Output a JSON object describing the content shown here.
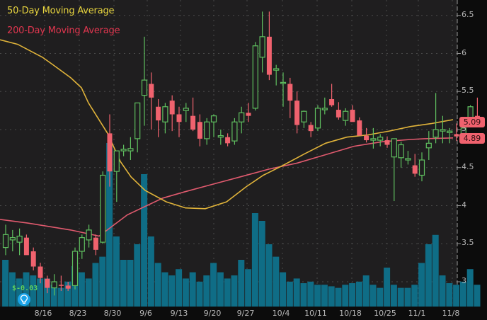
{
  "chart_data": {
    "type": "candlestick",
    "title": "",
    "legend": [
      {
        "label": "50-Day Moving Average",
        "color": "#e9d63f"
      },
      {
        "label": "200-Day Moving Average",
        "color": "#e0364f"
      }
    ],
    "y_axis": {
      "ticks": [
        "6.5",
        "6",
        "5.5",
        "5",
        "4.5",
        "4",
        "3.5",
        "3"
      ],
      "tick_values": [
        6.5,
        6,
        5.5,
        5,
        4.5,
        4,
        3.5,
        3
      ],
      "ylim": [
        2.7,
        6.65
      ],
      "position": "right"
    },
    "x_axis": {
      "ticks": [
        "8/16",
        "8/23",
        "8/30",
        "9/6",
        "9/13",
        "9/20",
        "9/27",
        "10/4",
        "10/11",
        "10/18",
        "10/25",
        "11/1",
        "11/8"
      ],
      "tick_x": [
        61,
        110,
        159,
        206,
        253,
        300,
        347,
        397,
        446,
        495,
        544,
        589,
        637
      ]
    },
    "price_tags": [
      {
        "label": "5.09",
        "value": 5.09,
        "series": "last price"
      },
      {
        "label": "4.89",
        "value": 4.89,
        "series": "200-Day Moving Average"
      }
    ],
    "candles_x_start": 8,
    "candles_x_step": 9.8,
    "candles": [
      {
        "o": 3.45,
        "h": 3.75,
        "l": 3.35,
        "c": 3.62,
        "v": 0.3
      },
      {
        "o": 3.55,
        "h": 3.68,
        "l": 3.4,
        "c": 3.58,
        "v": 0.22
      },
      {
        "o": 3.52,
        "h": 3.7,
        "l": 3.35,
        "c": 3.6,
        "v": 0.18
      },
      {
        "o": 3.58,
        "h": 3.62,
        "l": 3.4,
        "c": 3.35,
        "v": 0.22
      },
      {
        "o": 3.4,
        "h": 3.45,
        "l": 3.15,
        "c": 3.2,
        "v": 0.2
      },
      {
        "o": 3.2,
        "h": 3.25,
        "l": 2.98,
        "c": 3.05,
        "v": 0.18
      },
      {
        "o": 3.04,
        "h": 3.08,
        "l": 2.85,
        "c": 2.92,
        "v": 0.18
      },
      {
        "o": 2.92,
        "h": 3.1,
        "l": 2.82,
        "c": 3.0,
        "v": 0.14
      },
      {
        "o": 2.96,
        "h": 3.08,
        "l": 2.88,
        "c": 2.95,
        "v": 0.12
      },
      {
        "o": 2.95,
        "h": 3.0,
        "l": 2.88,
        "c": 2.91,
        "v": 0.16
      },
      {
        "o": 2.95,
        "h": 3.45,
        "l": 2.9,
        "c": 3.4,
        "v": 0.26
      },
      {
        "o": 3.4,
        "h": 3.62,
        "l": 3.3,
        "c": 3.58,
        "v": 0.22
      },
      {
        "o": 3.55,
        "h": 3.75,
        "l": 3.45,
        "c": 3.68,
        "v": 0.18
      },
      {
        "o": 3.58,
        "h": 3.62,
        "l": 3.35,
        "c": 3.42,
        "v": 0.28
      },
      {
        "o": 3.52,
        "h": 4.45,
        "l": 3.5,
        "c": 4.4,
        "v": 0.32
      },
      {
        "o": 4.95,
        "h": 5.2,
        "l": 4.25,
        "c": 4.45,
        "v": 1.05
      },
      {
        "o": 4.45,
        "h": 4.7,
        "l": 4.05,
        "c": 4.72,
        "v": 0.45
      },
      {
        "o": 4.72,
        "h": 4.8,
        "l": 4.65,
        "c": 4.74,
        "v": 0.3
      },
      {
        "o": 4.72,
        "h": 4.9,
        "l": 4.6,
        "c": 4.75,
        "v": 0.3
      },
      {
        "o": 4.88,
        "h": 5.3,
        "l": 4.7,
        "c": 5.35,
        "v": 0.4
      },
      {
        "o": 5.45,
        "h": 6.22,
        "l": 5.05,
        "c": 5.65,
        "v": 0.85
      },
      {
        "o": 5.6,
        "h": 5.75,
        "l": 5.0,
        "c": 5.42,
        "v": 0.45
      },
      {
        "o": 5.3,
        "h": 5.4,
        "l": 4.9,
        "c": 5.12,
        "v": 0.28
      },
      {
        "o": 5.1,
        "h": 5.35,
        "l": 4.95,
        "c": 5.3,
        "v": 0.22
      },
      {
        "o": 5.38,
        "h": 5.45,
        "l": 4.98,
        "c": 5.2,
        "v": 0.2
      },
      {
        "o": 5.2,
        "h": 5.3,
        "l": 4.9,
        "c": 5.1,
        "v": 0.24
      },
      {
        "o": 5.25,
        "h": 5.35,
        "l": 5.1,
        "c": 5.28,
        "v": 0.18
      },
      {
        "o": 5.18,
        "h": 5.42,
        "l": 4.98,
        "c": 5.0,
        "v": 0.22
      },
      {
        "o": 5.1,
        "h": 5.2,
        "l": 4.78,
        "c": 4.88,
        "v": 0.16
      },
      {
        "o": 4.88,
        "h": 5.15,
        "l": 4.8,
        "c": 5.1,
        "v": 0.2
      },
      {
        "o": 5.1,
        "h": 5.2,
        "l": 4.9,
        "c": 5.18,
        "v": 0.28
      },
      {
        "o": 4.9,
        "h": 5.0,
        "l": 4.8,
        "c": 4.92,
        "v": 0.22
      },
      {
        "o": 4.9,
        "h": 4.95,
        "l": 4.78,
        "c": 4.82,
        "v": 0.18
      },
      {
        "o": 4.85,
        "h": 5.15,
        "l": 4.8,
        "c": 5.1,
        "v": 0.2
      },
      {
        "o": 5.1,
        "h": 5.3,
        "l": 4.95,
        "c": 5.22,
        "v": 0.3
      },
      {
        "o": 5.22,
        "h": 5.35,
        "l": 5.1,
        "c": 5.18,
        "v": 0.24
      },
      {
        "o": 5.28,
        "h": 6.15,
        "l": 5.25,
        "c": 6.1,
        "v": 0.6
      },
      {
        "o": 5.95,
        "h": 6.55,
        "l": 5.75,
        "c": 6.22,
        "v": 0.55
      },
      {
        "o": 6.22,
        "h": 6.55,
        "l": 5.65,
        "c": 5.72,
        "v": 0.4
      },
      {
        "o": 5.78,
        "h": 5.85,
        "l": 5.58,
        "c": 5.8,
        "v": 0.32
      },
      {
        "o": 5.62,
        "h": 5.75,
        "l": 5.3,
        "c": 5.62,
        "v": 0.22
      },
      {
        "o": 5.6,
        "h": 5.68,
        "l": 5.15,
        "c": 5.38,
        "v": 0.16
      },
      {
        "o": 5.38,
        "h": 5.5,
        "l": 4.95,
        "c": 5.06,
        "v": 0.18
      },
      {
        "o": 5.1,
        "h": 5.25,
        "l": 5.02,
        "c": 5.24,
        "v": 0.15
      },
      {
        "o": 5.06,
        "h": 5.1,
        "l": 4.9,
        "c": 4.98,
        "v": 0.16
      },
      {
        "o": 5.02,
        "h": 5.32,
        "l": 4.98,
        "c": 5.28,
        "v": 0.14
      },
      {
        "o": 5.26,
        "h": 5.42,
        "l": 5.2,
        "c": 5.28,
        "v": 0.14
      },
      {
        "o": 5.4,
        "h": 5.6,
        "l": 5.3,
        "c": 5.32,
        "v": 0.13
      },
      {
        "o": 5.26,
        "h": 5.36,
        "l": 5.13,
        "c": 5.16,
        "v": 0.12
      },
      {
        "o": 5.12,
        "h": 5.28,
        "l": 5.05,
        "c": 5.24,
        "v": 0.14
      },
      {
        "o": 5.26,
        "h": 5.32,
        "l": 5.12,
        "c": 5.1,
        "v": 0.15
      },
      {
        "o": 5.12,
        "h": 5.16,
        "l": 4.95,
        "c": 4.92,
        "v": 0.16
      },
      {
        "o": 4.92,
        "h": 5.02,
        "l": 4.83,
        "c": 4.86,
        "v": 0.2
      },
      {
        "o": 4.86,
        "h": 5.02,
        "l": 4.75,
        "c": 4.88,
        "v": 0.14
      },
      {
        "o": 4.86,
        "h": 4.94,
        "l": 4.78,
        "c": 4.9,
        "v": 0.12
      },
      {
        "o": 4.86,
        "h": 4.91,
        "l": 4.76,
        "c": 4.8,
        "v": 0.25
      },
      {
        "o": 4.64,
        "h": 4.88,
        "l": 4.06,
        "c": 4.88,
        "v": 0.14
      },
      {
        "o": 4.63,
        "h": 4.84,
        "l": 4.5,
        "c": 4.8,
        "v": 0.12
      },
      {
        "o": 4.6,
        "h": 4.72,
        "l": 4.54,
        "c": 4.62,
        "v": 0.12
      },
      {
        "o": 4.53,
        "h": 4.68,
        "l": 4.38,
        "c": 4.42,
        "v": 0.14
      },
      {
        "o": 4.4,
        "h": 4.7,
        "l": 4.32,
        "c": 4.6,
        "v": 0.28
      },
      {
        "o": 4.76,
        "h": 4.98,
        "l": 4.6,
        "c": 4.82,
        "v": 0.4
      },
      {
        "o": 4.9,
        "h": 5.48,
        "l": 4.82,
        "c": 5.0,
        "v": 0.46
      },
      {
        "o": 4.98,
        "h": 5.18,
        "l": 4.82,
        "c": 5.0,
        "v": 0.2
      },
      {
        "o": 4.96,
        "h": 5.02,
        "l": 4.82,
        "c": 4.98,
        "v": 0.15
      },
      {
        "o": 4.94,
        "h": 5.08,
        "l": 4.85,
        "c": 4.91,
        "v": 0.14
      },
      {
        "o": 4.94,
        "h": 5.05,
        "l": 4.88,
        "c": 5.02,
        "v": 0.16
      },
      {
        "o": 5.09,
        "h": 5.32,
        "l": 5.05,
        "c": 5.3,
        "v": 0.24
      },
      {
        "o": 5.18,
        "h": 5.42,
        "l": 5.05,
        "c": 5.09,
        "v": 0.14
      }
    ],
    "ma50": [
      [
        0,
        6.18
      ],
      [
        25,
        6.12
      ],
      [
        60,
        5.95
      ],
      [
        75,
        5.85
      ],
      [
        100,
        5.68
      ],
      [
        115,
        5.55
      ],
      [
        125,
        5.35
      ],
      [
        152,
        4.95
      ],
      [
        170,
        4.58
      ],
      [
        185,
        4.38
      ],
      [
        205,
        4.2
      ],
      [
        235,
        4.05
      ],
      [
        262,
        3.97
      ],
      [
        290,
        3.96
      ],
      [
        320,
        4.05
      ],
      [
        348,
        4.25
      ],
      [
        372,
        4.4
      ],
      [
        400,
        4.53
      ],
      [
        430,
        4.68
      ],
      [
        460,
        4.82
      ],
      [
        490,
        4.9
      ],
      [
        520,
        4.93
      ],
      [
        550,
        4.98
      ],
      [
        580,
        5.04
      ],
      [
        610,
        5.08
      ],
      [
        640,
        5.13
      ]
    ],
    "ma200": [
      [
        0,
        3.82
      ],
      [
        40,
        3.77
      ],
      [
        100,
        3.68
      ],
      [
        140,
        3.6
      ],
      [
        180,
        3.88
      ],
      [
        230,
        4.1
      ],
      [
        260,
        4.18
      ],
      [
        300,
        4.28
      ],
      [
        340,
        4.38
      ],
      [
        380,
        4.48
      ],
      [
        420,
        4.56
      ],
      [
        460,
        4.67
      ],
      [
        500,
        4.78
      ],
      [
        540,
        4.84
      ],
      [
        580,
        4.87
      ],
      [
        600,
        4.88
      ],
      [
        640,
        4.89
      ]
    ],
    "volume_axis": {
      "base_y": 433,
      "max_height": 220
    }
  },
  "annotations": {
    "eps_label": "$-0.03",
    "earnings_icon": "lightbulb-icon"
  }
}
